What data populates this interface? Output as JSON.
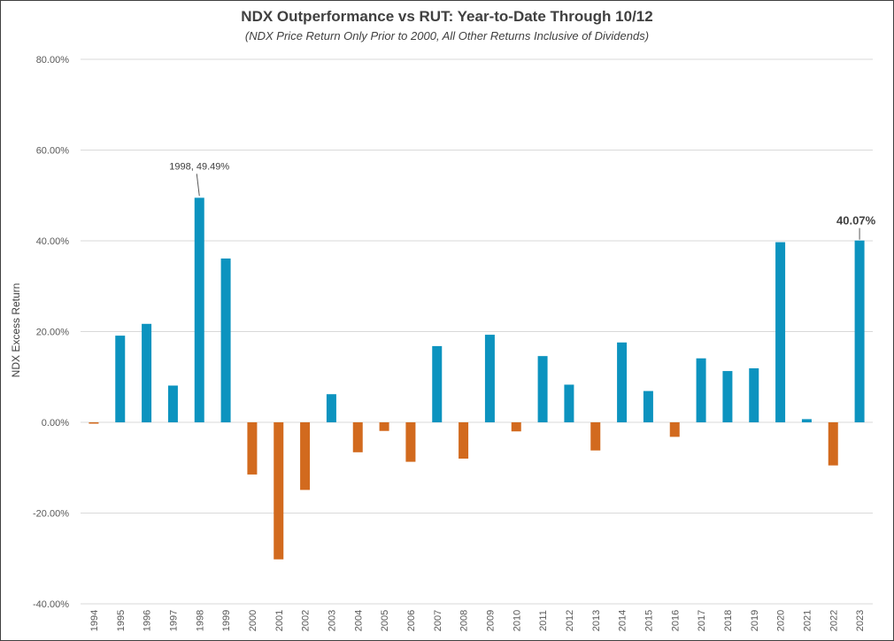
{
  "chart_data": {
    "type": "bar",
    "title": "NDX Outperformance vs RUT: Year-to-Date Through 10/12",
    "subtitle": "(NDX Price Return Only Prior to 2000, All Other Returns Inclusive of Dividends)",
    "xlabel": "",
    "ylabel": "NDX Excess Return",
    "ylim": [
      -40,
      80
    ],
    "yticks": [
      80,
      60,
      40,
      20,
      0,
      -20,
      -40
    ],
    "ytick_labels": [
      "80.00%",
      "60.00%",
      "40.00%",
      "20.00%",
      "0.00%",
      "-20.00%",
      "-40.00%"
    ],
    "grid": true,
    "legend": "none",
    "categories": [
      "1994",
      "1995",
      "1996",
      "1997",
      "1998",
      "1999",
      "2000",
      "2001",
      "2002",
      "2003",
      "2004",
      "2005",
      "2006",
      "2007",
      "2008",
      "2009",
      "2010",
      "2011",
      "2012",
      "2013",
      "2014",
      "2015",
      "2016",
      "2017",
      "2018",
      "2019",
      "2020",
      "2021",
      "2022",
      "2023"
    ],
    "values": [
      -0.3,
      19.1,
      21.7,
      8.1,
      49.49,
      36.1,
      -11.5,
      -30.2,
      -14.9,
      6.2,
      -6.6,
      -1.9,
      -8.7,
      16.8,
      -8.0,
      19.3,
      -2.0,
      14.6,
      8.3,
      -6.2,
      17.6,
      6.9,
      -3.2,
      14.1,
      11.3,
      11.9,
      39.7,
      0.7,
      -9.5,
      40.07
    ],
    "colors": {
      "positive": "#0C93BF",
      "negative": "#D26A1E",
      "grid": "#D9D9D9",
      "text": "#404040"
    },
    "annotations": [
      {
        "label": "1998, 49.49%",
        "category": "1998",
        "value": 49.49,
        "style": "normal"
      },
      {
        "label": "40.07%",
        "category": "2023",
        "value": 40.07,
        "style": "bold"
      }
    ]
  }
}
